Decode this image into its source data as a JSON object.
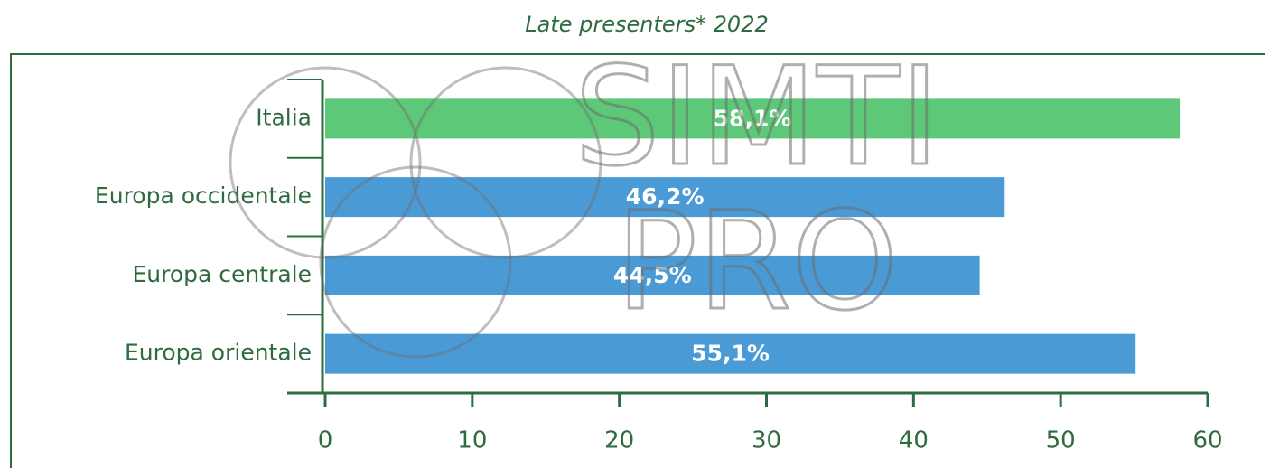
{
  "chart_data": {
    "type": "hbar",
    "title": "Late presenters* 2022",
    "categories": [
      "Italia",
      "Europa occidentale",
      "Europa centrale",
      "Europa orientale"
    ],
    "values": [
      58.1,
      46.2,
      44.5,
      55.1
    ],
    "value_labels": [
      "58,1%",
      "46,2%",
      "44,5%",
      "55,1%"
    ],
    "colors": [
      "#5cc878",
      "#4a9ad6",
      "#4a9ad6",
      "#4a9ad6"
    ],
    "xlim": [
      0,
      60
    ],
    "xticks": [
      0,
      10,
      20,
      30,
      40,
      50,
      60
    ],
    "watermark": [
      "SIMTI",
      "PRO"
    ]
  }
}
